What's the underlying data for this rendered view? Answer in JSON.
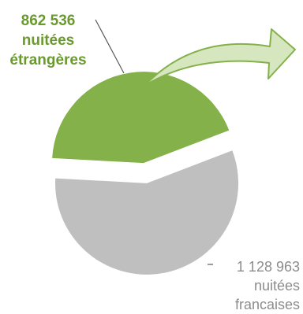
{
  "chart_data": {
    "type": "pie",
    "slices": [
      {
        "name": "nuitées étrangères",
        "value": 862536,
        "color": "#84b14a"
      },
      {
        "name": "nuitées francaises",
        "value": 1128963,
        "color": "#bfbfbf"
      }
    ],
    "labels": {
      "foreign": {
        "value": "862 536",
        "line2": "nuitées",
        "line3": "étrangères"
      },
      "french": {
        "value": "1 128 963",
        "line2": "nuitées",
        "line3": "francaises"
      }
    },
    "arrow_color": "#d6e7bf",
    "arrow_stroke": "#84b14a"
  }
}
